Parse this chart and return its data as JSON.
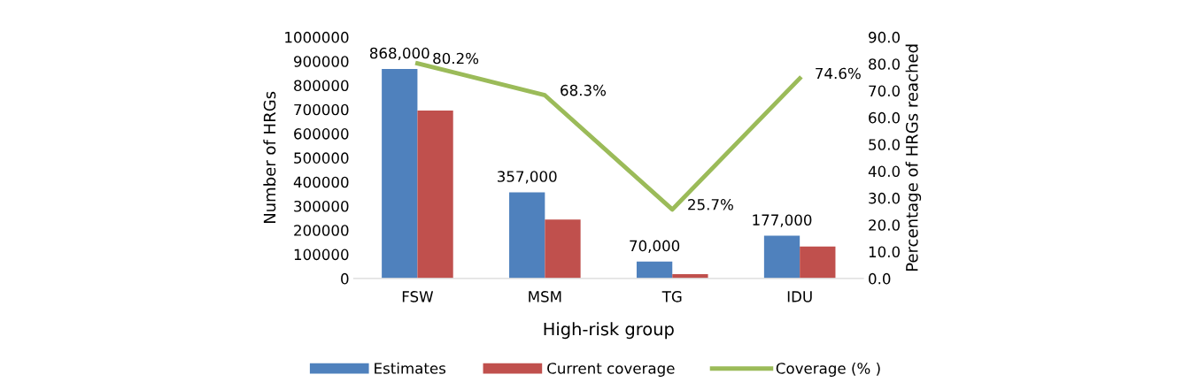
{
  "chart_data": {
    "type": "bar",
    "xlabel": "High-risk group",
    "ylabel": "Number of HRGs",
    "y2label": "Percentage of HRGs reached",
    "categories": [
      "FSW",
      "MSM",
      "TG",
      "IDU"
    ],
    "series": [
      {
        "name": "Estimates",
        "color": "#4f81bd",
        "values": [
          868000,
          357000,
          70000,
          177000
        ],
        "value_labels": [
          "868,000",
          "357,000",
          "70,000",
          "177,000"
        ]
      },
      {
        "name": "Current coverage",
        "color": "#c0504d",
        "values": [
          696000,
          244000,
          18000,
          132000
        ]
      },
      {
        "name": "Coverage (% )",
        "type": "line",
        "axis": "y2",
        "color": "#9bbb59",
        "values": [
          80.2,
          68.3,
          25.7,
          74.6
        ],
        "value_labels": [
          "80.2%",
          "68.3%",
          "25.7%",
          "74.6%"
        ]
      }
    ],
    "ylim": [
      0,
      1000000
    ],
    "yticks": [
      0,
      100000,
      200000,
      300000,
      400000,
      500000,
      600000,
      700000,
      800000,
      900000,
      1000000
    ],
    "y2lim": [
      0,
      90
    ],
    "y2ticks": [
      {
        "value": 0,
        "label": "0.0"
      },
      {
        "value": 10,
        "label": "10.0"
      },
      {
        "value": 20,
        "label": "20.0"
      },
      {
        "value": 30,
        "label": "30.0"
      },
      {
        "value": 40,
        "label": "40.0"
      },
      {
        "value": 50,
        "label": "50.0"
      },
      {
        "value": 60,
        "label": "60.0"
      },
      {
        "value": 70,
        "label": "70.0"
      },
      {
        "value": 80,
        "label": "80.0"
      },
      {
        "value": 90,
        "label": "90.0"
      }
    ],
    "grid": false,
    "legend": "bottom",
    "marker": "none",
    "line_style": "solid"
  }
}
